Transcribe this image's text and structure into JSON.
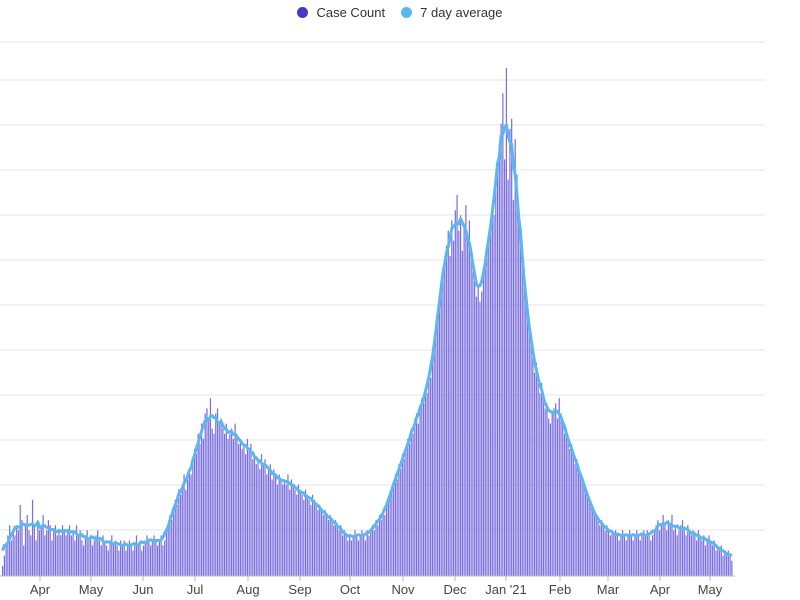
{
  "legend": {
    "case_count_label": "Case Count",
    "avg_label": "7 day average"
  },
  "colors": {
    "bar": "#7b6fe0",
    "bar_stroke": "#5a4cc8",
    "legend_bar_dot": "#4338ca",
    "average_line": "#5bb8ee",
    "grid": "#e6e6e6"
  },
  "chart_data": {
    "type": "bar",
    "x_tick_labels": [
      "Apr",
      "May",
      "Jun",
      "Jul",
      "Aug",
      "Sep",
      "Oct",
      "Nov",
      "Dec",
      "Jan '21",
      "Feb",
      "Mar",
      "Apr",
      "May"
    ],
    "grid": true,
    "legend_position": "top-center",
    "series": [
      {
        "name": "Case Count",
        "type": "bar",
        "description_values_by_period": [
          {
            "period": "late Mar",
            "values": [
              2,
              4,
              6,
              8,
              10,
              7,
              9
            ]
          },
          {
            "period": "Apr",
            "values": [
              8,
              10,
              9,
              14,
              11,
              6,
              10,
              12,
              9,
              8,
              15,
              10,
              7,
              11,
              9,
              10,
              12,
              8,
              9,
              11,
              10,
              7,
              9,
              10,
              8,
              9,
              8,
              10,
              9,
              8
            ]
          },
          {
            "period": "May",
            "values": [
              9,
              10,
              8,
              9,
              7,
              10,
              8,
              9,
              7,
              6,
              8,
              9,
              7,
              8,
              6,
              7,
              8,
              9,
              7,
              6,
              8,
              7,
              6,
              5,
              7,
              8,
              6,
              7,
              6,
              5,
              7
            ]
          },
          {
            "period": "Jun",
            "values": [
              6,
              7,
              5,
              6,
              7,
              6,
              5,
              6,
              8,
              6,
              7,
              5,
              6,
              7,
              8,
              7,
              6,
              7,
              8,
              7,
              6,
              7,
              8,
              6,
              7,
              9,
              10,
              12,
              11,
              13
            ]
          },
          {
            "period": "Jul",
            "values": [
              15,
              14,
              17,
              16,
              18,
              20,
              17,
              19,
              21,
              20,
              23,
              25,
              24,
              28,
              26,
              30,
              27,
              32,
              33,
              31,
              35,
              29,
              28,
              32,
              33,
              30,
              31,
              29,
              28,
              30,
              27
            ]
          },
          {
            "period": "Aug",
            "values": [
              28,
              29,
              27,
              30,
              28,
              26,
              27,
              25,
              26,
              24,
              27,
              25,
              26,
              23,
              24,
              22,
              23,
              21,
              24,
              22,
              23,
              20,
              21,
              22,
              19,
              21,
              20,
              18,
              20,
              19,
              18
            ]
          },
          {
            "period": "Sep",
            "values": [
              19,
              18,
              20,
              17,
              19,
              18,
              17,
              16,
              18,
              17,
              16,
              15,
              17,
              16,
              15,
              14,
              16,
              15,
              14,
              13,
              14,
              13,
              12,
              13,
              12,
              11,
              12,
              11,
              10,
              11
            ]
          },
          {
            "period": "Oct",
            "values": [
              10,
              9,
              10,
              8,
              9,
              8,
              7,
              8,
              7,
              8,
              9,
              8,
              7,
              8,
              9,
              8,
              7,
              9,
              8,
              9,
              10,
              9,
              11,
              10,
              12,
              11,
              13,
              12,
              14,
              15,
              16
            ]
          },
          {
            "period": "Nov",
            "values": [
              17,
              18,
              20,
              19,
              22,
              21,
              24,
              23,
              25,
              27,
              26,
              29,
              28,
              31,
              32,
              30,
              33,
              35,
              34,
              37,
              36,
              40,
              39,
              43,
              45,
              48,
              50,
              55,
              58,
              60
            ]
          },
          {
            "period": "Dec",
            "values": [
              62,
              65,
              68,
              63,
              70,
              66,
              72,
              75,
              68,
              71,
              64,
              69,
              73,
              67,
              70,
              62,
              60,
              58,
              55,
              57,
              54,
              56,
              59,
              61,
              64,
              67,
              70,
              73,
              71,
              76,
              80
            ]
          },
          {
            "period": "Jan",
            "values": [
              85,
              89,
              95,
              82,
              100,
              78,
              88,
              90,
              74,
              86,
              79,
              70,
              66,
              61,
              58,
              55,
              52,
              49,
              46,
              43,
              40,
              42,
              39,
              36,
              38,
              35,
              33,
              34,
              31,
              30,
              32
            ]
          },
          {
            "period": "Feb",
            "values": [
              33,
              34,
              31,
              35,
              32,
              30,
              28,
              29,
              27,
              25,
              26,
              24,
              22,
              23,
              21,
              20,
              19,
              18,
              17,
              16,
              15,
              14,
              13,
              12,
              12,
              11,
              10,
              11
            ]
          },
          {
            "period": "Mar",
            "values": [
              10,
              9,
              10,
              9,
              8,
              9,
              8,
              9,
              8,
              7,
              8,
              9,
              8,
              7,
              8,
              9,
              8,
              7,
              8,
              9,
              8,
              7,
              8,
              9,
              8,
              9,
              8,
              7,
              8,
              9,
              10
            ]
          },
          {
            "period": "Apr",
            "values": [
              11,
              9,
              10,
              12,
              10,
              9,
              11,
              10,
              12,
              9,
              10,
              8,
              9,
              10,
              11,
              9,
              8,
              10,
              9,
              8,
              9,
              8,
              7,
              9,
              8,
              7,
              8,
              6,
              7,
              8
            ]
          },
          {
            "period": "May",
            "values": [
              7,
              6,
              7,
              5,
              6,
              5,
              6,
              4,
              5,
              4,
              5,
              4,
              3
            ]
          }
        ]
      },
      {
        "name": "7 day average",
        "type": "line"
      }
    ]
  }
}
